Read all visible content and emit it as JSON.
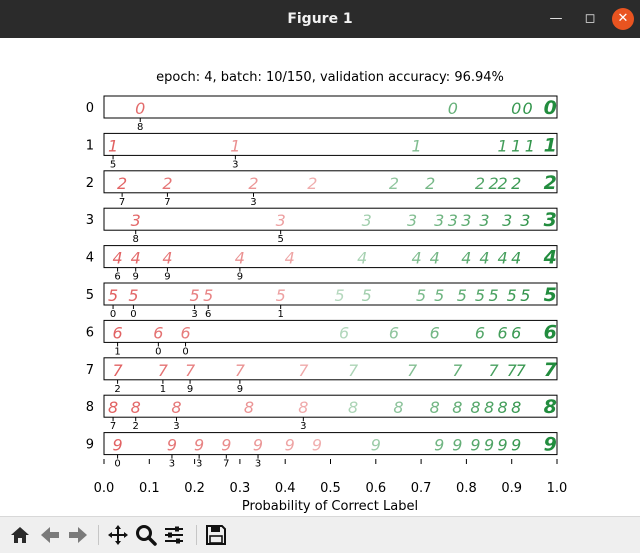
{
  "window": {
    "title": "Figure 1",
    "minimize_icon": "minimize-icon",
    "maximize_icon": "maximize-icon",
    "close_icon": "close-icon"
  },
  "figure": {
    "title": "epoch: 4, batch: 10/150, validation accuracy: 96.94%",
    "xlabel": "Probability of Correct Label",
    "xticks": [
      "0.0",
      "0.1",
      "0.2",
      "0.3",
      "0.4",
      "0.5",
      "0.6",
      "0.7",
      "0.8",
      "0.9",
      "1.0"
    ]
  },
  "rows": [
    {
      "digit": "0",
      "samples": [
        {
          "p": 0.08,
          "lab": "8"
        },
        {
          "p": 0.77
        },
        {
          "p": 0.91
        },
        {
          "p": 0.935
        },
        {
          "p": 0.985
        }
      ]
    },
    {
      "digit": "1",
      "samples": [
        {
          "p": 0.02,
          "lab": "5"
        },
        {
          "p": 0.29,
          "lab": "3"
        },
        {
          "p": 0.69
        },
        {
          "p": 0.88
        },
        {
          "p": 0.91
        },
        {
          "p": 0.94
        },
        {
          "p": 0.985
        }
      ]
    },
    {
      "digit": "2",
      "samples": [
        {
          "p": 0.04,
          "lab": "7"
        },
        {
          "p": 0.14,
          "lab": "7"
        },
        {
          "p": 0.33,
          "lab": "3"
        },
        {
          "p": 0.46
        },
        {
          "p": 0.64
        },
        {
          "p": 0.72
        },
        {
          "p": 0.83
        },
        {
          "p": 0.86
        },
        {
          "p": 0.88
        },
        {
          "p": 0.91
        },
        {
          "p": 0.985
        }
      ]
    },
    {
      "digit": "3",
      "samples": [
        {
          "p": 0.07,
          "lab": "8"
        },
        {
          "p": 0.39,
          "lab": "5"
        },
        {
          "p": 0.58
        },
        {
          "p": 0.68
        },
        {
          "p": 0.74
        },
        {
          "p": 0.77
        },
        {
          "p": 0.8
        },
        {
          "p": 0.84
        },
        {
          "p": 0.89
        },
        {
          "p": 0.93
        },
        {
          "p": 0.985
        }
      ]
    },
    {
      "digit": "4",
      "samples": [
        {
          "p": 0.03,
          "lab": "6"
        },
        {
          "p": 0.07,
          "lab": "9"
        },
        {
          "p": 0.14,
          "lab": "9"
        },
        {
          "p": 0.3,
          "lab": "9"
        },
        {
          "p": 0.41
        },
        {
          "p": 0.57
        },
        {
          "p": 0.69
        },
        {
          "p": 0.73
        },
        {
          "p": 0.8
        },
        {
          "p": 0.84
        },
        {
          "p": 0.88
        },
        {
          "p": 0.91
        },
        {
          "p": 0.985
        }
      ]
    },
    {
      "digit": "5",
      "samples": [
        {
          "p": 0.02,
          "lab": "0"
        },
        {
          "p": 0.065,
          "lab": "0"
        },
        {
          "p": 0.2,
          "lab": "3"
        },
        {
          "p": 0.23,
          "lab": "6"
        },
        {
          "p": 0.39,
          "lab": "1"
        },
        {
          "p": 0.52
        },
        {
          "p": 0.58
        },
        {
          "p": 0.7
        },
        {
          "p": 0.74
        },
        {
          "p": 0.79
        },
        {
          "p": 0.83
        },
        {
          "p": 0.86
        },
        {
          "p": 0.9
        },
        {
          "p": 0.93
        },
        {
          "p": 0.985
        }
      ]
    },
    {
      "digit": "6",
      "samples": [
        {
          "p": 0.03,
          "lab": "1"
        },
        {
          "p": 0.12,
          "lab": "0"
        },
        {
          "p": 0.18,
          "lab": "0"
        },
        {
          "p": 0.53
        },
        {
          "p": 0.64
        },
        {
          "p": 0.73
        },
        {
          "p": 0.83
        },
        {
          "p": 0.88
        },
        {
          "p": 0.91
        },
        {
          "p": 0.985
        }
      ]
    },
    {
      "digit": "7",
      "samples": [
        {
          "p": 0.03,
          "lab": "2"
        },
        {
          "p": 0.13,
          "lab": "1"
        },
        {
          "p": 0.19,
          "lab": "9"
        },
        {
          "p": 0.3,
          "lab": "9"
        },
        {
          "p": 0.44
        },
        {
          "p": 0.55
        },
        {
          "p": 0.68
        },
        {
          "p": 0.78
        },
        {
          "p": 0.86
        },
        {
          "p": 0.9
        },
        {
          "p": 0.92
        },
        {
          "p": 0.985
        }
      ]
    },
    {
      "digit": "8",
      "samples": [
        {
          "p": 0.02,
          "lab": "7"
        },
        {
          "p": 0.07,
          "lab": "2"
        },
        {
          "p": 0.16,
          "lab": "3"
        },
        {
          "p": 0.32
        },
        {
          "p": 0.44,
          "lab": "3"
        },
        {
          "p": 0.55
        },
        {
          "p": 0.65
        },
        {
          "p": 0.73
        },
        {
          "p": 0.78
        },
        {
          "p": 0.82
        },
        {
          "p": 0.85
        },
        {
          "p": 0.88
        },
        {
          "p": 0.91
        },
        {
          "p": 0.985
        }
      ]
    },
    {
      "digit": "9",
      "samples": [
        {
          "p": 0.03,
          "lab": "0"
        },
        {
          "p": 0.15,
          "lab": "3"
        },
        {
          "p": 0.21,
          "lab": "3"
        },
        {
          "p": 0.27,
          "lab": "7"
        },
        {
          "p": 0.34,
          "lab": "3"
        },
        {
          "p": 0.41
        },
        {
          "p": 0.47
        },
        {
          "p": 0.6
        },
        {
          "p": 0.74
        },
        {
          "p": 0.78
        },
        {
          "p": 0.82
        },
        {
          "p": 0.85
        },
        {
          "p": 0.88
        },
        {
          "p": 0.91
        },
        {
          "p": 0.985
        }
      ]
    }
  ],
  "toolbar": {
    "buttons": [
      {
        "name": "home-button",
        "icon": "home-icon"
      },
      {
        "name": "back-button",
        "icon": "arrow-left-icon"
      },
      {
        "name": "forward-button",
        "icon": "arrow-right-icon"
      },
      {
        "name": "pan-button",
        "icon": "move-icon"
      },
      {
        "name": "zoom-button",
        "icon": "magnifier-icon"
      },
      {
        "name": "configure-subplots-button",
        "icon": "sliders-icon"
      },
      {
        "name": "save-button",
        "icon": "floppy-disk-icon"
      }
    ]
  }
}
